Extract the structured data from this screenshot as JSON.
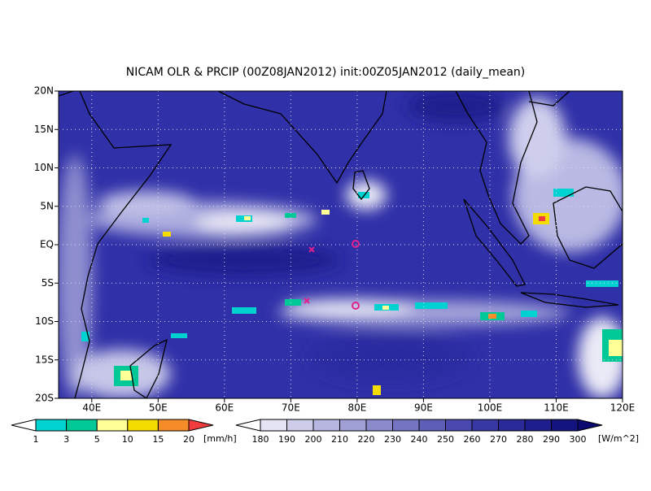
{
  "title": "NICAM OLR & PRCIP (00Z08JAN2012) init:00Z05JAN2012 (daily_mean)",
  "lat_labels": [
    "20N",
    "15N",
    "10N",
    "5N",
    "EQ",
    "5S",
    "10S",
    "15S",
    "20S"
  ],
  "lon_labels": [
    "40E",
    "50E",
    "60E",
    "70E",
    "80E",
    "90E",
    "100E",
    "110E",
    "120E"
  ],
  "precip_bar": {
    "labels": [
      "1",
      "3",
      "5",
      "10",
      "15",
      "20"
    ],
    "unit": "[mm/h]",
    "colors": [
      "#ffffff",
      "#00d2d2",
      "#00c896",
      "#ffff96",
      "#f5dc00",
      "#f58c28",
      "#f03c3c"
    ]
  },
  "olr_bar": {
    "labels": [
      "180",
      "190",
      "200",
      "210",
      "220",
      "230",
      "240",
      "250",
      "260",
      "270",
      "280",
      "290",
      "300"
    ],
    "unit": "[W/m^2]",
    "colors": [
      "#ffffff",
      "#e4e4f4",
      "#cdcdea",
      "#b6b6e0",
      "#a0a0d6",
      "#8a8acc",
      "#7474c2",
      "#5e5eb8",
      "#4848ae",
      "#3838a4",
      "#2a2a98",
      "#1e1e8c",
      "#141480",
      "#0a0a70"
    ]
  }
}
